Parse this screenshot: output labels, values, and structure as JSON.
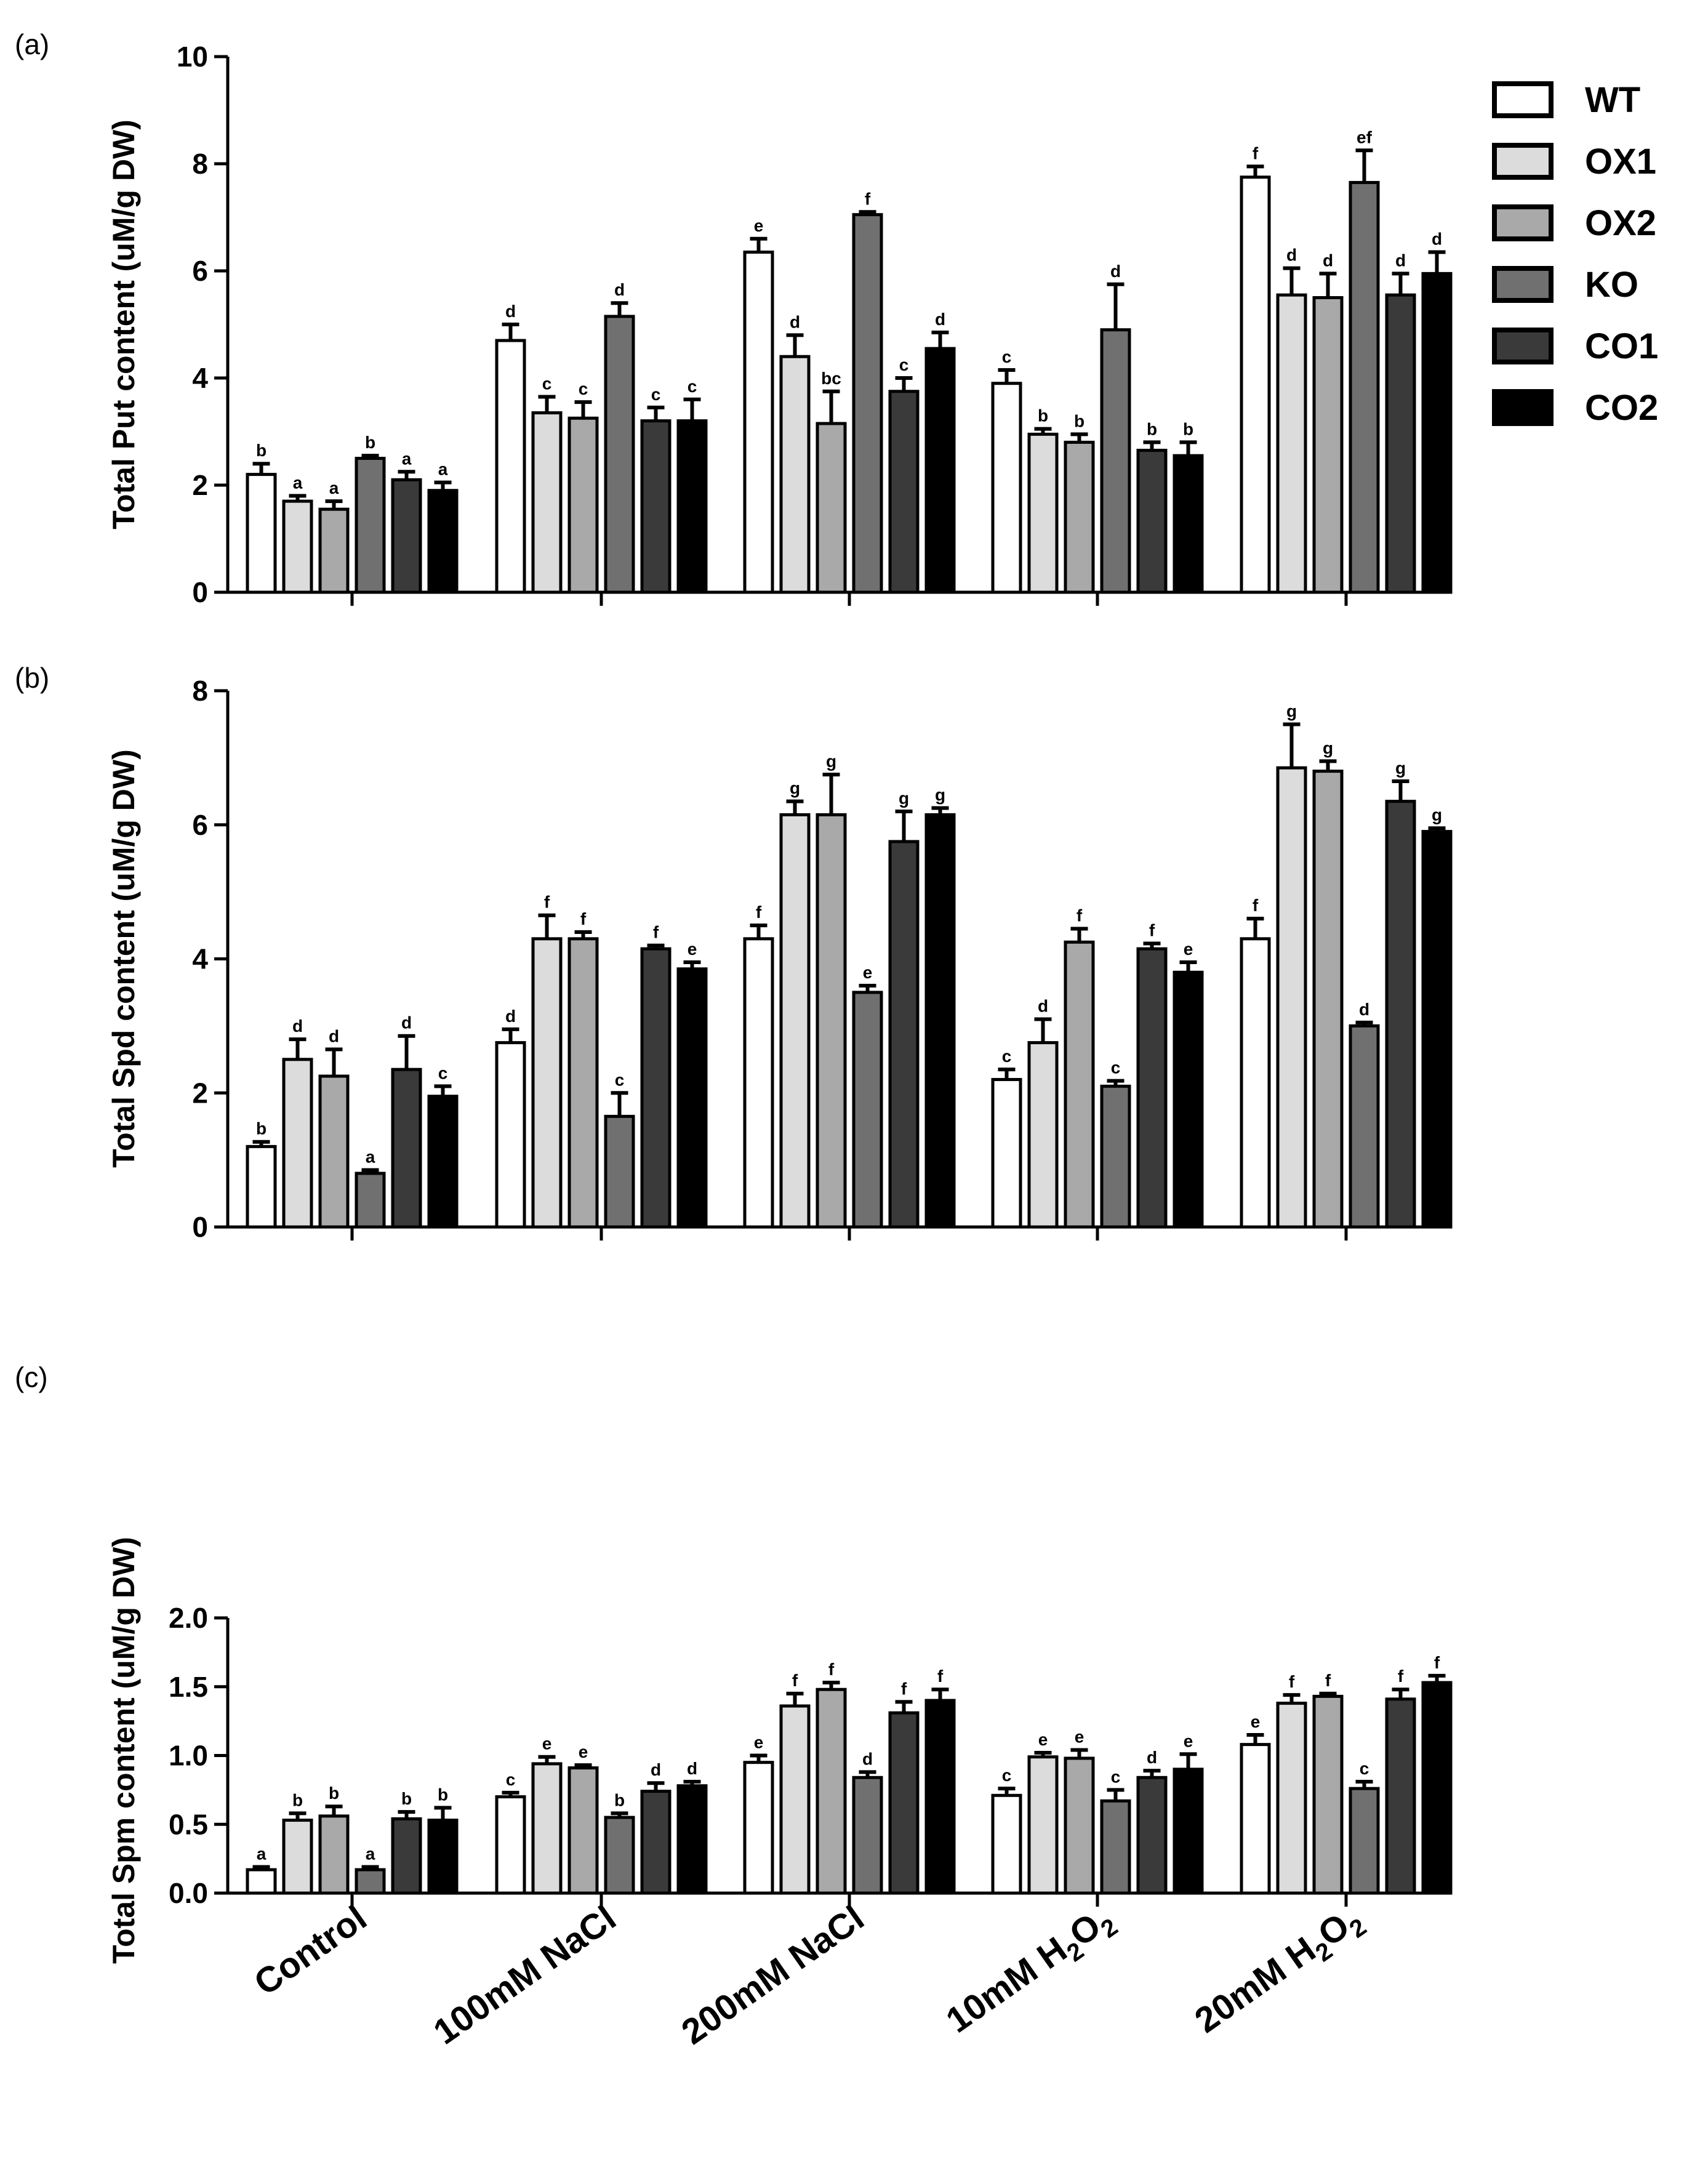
{
  "chart_data": [
    {
      "type": "bar",
      "panel": "(a)",
      "ylabel": "Total Put content (uM/g DW)",
      "ylim": [
        0,
        10
      ],
      "yticks": [
        "0",
        "2",
        "4",
        "6",
        "8",
        "10"
      ],
      "categories": [
        "Control",
        "100mM NaCl",
        "200mM NaCl",
        "10mM H2O2",
        "20mM H2O2"
      ],
      "series": [
        {
          "name": "WT",
          "values": [
            2.2,
            4.7,
            6.35,
            3.9,
            7.75
          ],
          "errors": [
            0.2,
            0.3,
            0.25,
            0.25,
            0.2
          ],
          "letters": [
            "b",
            "d",
            "e",
            "c",
            "f"
          ]
        },
        {
          "name": "OX1",
          "values": [
            1.7,
            3.35,
            4.4,
            2.95,
            5.55
          ],
          "errors": [
            0.1,
            0.3,
            0.4,
            0.1,
            0.5
          ],
          "letters": [
            "a",
            "c",
            "d",
            "b",
            "d"
          ]
        },
        {
          "name": "OX2",
          "values": [
            1.55,
            3.25,
            3.15,
            2.8,
            5.5
          ],
          "errors": [
            0.15,
            0.3,
            0.6,
            0.15,
            0.45
          ],
          "letters": [
            "a",
            "c",
            "bc",
            "b",
            "d"
          ]
        },
        {
          "name": "KO",
          "values": [
            2.5,
            5.15,
            7.05,
            4.9,
            7.65
          ],
          "errors": [
            0.05,
            0.25,
            0.05,
            0.85,
            0.6
          ],
          "letters": [
            "b",
            "d",
            "f",
            "d",
            "ef"
          ]
        },
        {
          "name": "CO1",
          "values": [
            2.1,
            3.2,
            3.75,
            2.65,
            5.55
          ],
          "errors": [
            0.15,
            0.25,
            0.25,
            0.15,
            0.4
          ],
          "letters": [
            "a",
            "c",
            "c",
            "b",
            "d"
          ]
        },
        {
          "name": "CO2",
          "values": [
            1.9,
            3.2,
            4.55,
            2.55,
            5.95
          ],
          "errors": [
            0.15,
            0.4,
            0.3,
            0.25,
            0.4
          ],
          "letters": [
            "a",
            "c",
            "d",
            "b",
            "d"
          ]
        }
      ]
    },
    {
      "type": "bar",
      "panel": "(b)",
      "ylabel": "Total Spd content (uM/g DW)",
      "ylim": [
        0,
        8
      ],
      "yticks": [
        "0",
        "2",
        "4",
        "6",
        "8"
      ],
      "categories": [
        "Control",
        "100mM NaCl",
        "200mM NaCl",
        "10mM H2O2",
        "20mM H2O2"
      ],
      "series": [
        {
          "name": "WT",
          "values": [
            1.2,
            2.75,
            4.3,
            2.2,
            4.3
          ],
          "errors": [
            0.07,
            0.2,
            0.2,
            0.15,
            0.3
          ],
          "letters": [
            "b",
            "d",
            "f",
            "c",
            "f"
          ]
        },
        {
          "name": "OX1",
          "values": [
            2.5,
            4.3,
            6.15,
            2.75,
            6.85
          ],
          "errors": [
            0.3,
            0.35,
            0.2,
            0.35,
            0.65
          ],
          "letters": [
            "d",
            "f",
            "g",
            "d",
            "g"
          ]
        },
        {
          "name": "OX2",
          "values": [
            2.25,
            4.3,
            6.15,
            4.25,
            6.8
          ],
          "errors": [
            0.4,
            0.1,
            0.6,
            0.2,
            0.15
          ],
          "letters": [
            "d",
            "f",
            "g",
            "f",
            "g"
          ]
        },
        {
          "name": "KO",
          "values": [
            0.8,
            1.65,
            3.5,
            2.1,
            3.0
          ],
          "errors": [
            0.05,
            0.35,
            0.1,
            0.08,
            0.05
          ],
          "letters": [
            "a",
            "c",
            "e",
            "c",
            "d"
          ]
        },
        {
          "name": "CO1",
          "values": [
            2.35,
            4.15,
            5.75,
            4.15,
            6.35
          ],
          "errors": [
            0.5,
            0.05,
            0.45,
            0.08,
            0.3
          ],
          "letters": [
            "d",
            "f",
            "g",
            "f",
            "g"
          ]
        },
        {
          "name": "CO2",
          "values": [
            1.95,
            3.85,
            6.15,
            3.8,
            5.9
          ],
          "errors": [
            0.15,
            0.1,
            0.1,
            0.15,
            0.05
          ],
          "letters": [
            "c",
            "e",
            "g",
            "e",
            "g"
          ]
        }
      ]
    },
    {
      "type": "bar",
      "panel": "(c)",
      "ylabel": "Total Spm content (uM/g DW)",
      "ylim": [
        0,
        2.0
      ],
      "yticks": [
        "0.0",
        "0.5",
        "1.0",
        "1.5",
        "2.0"
      ],
      "categories": [
        "Control",
        "100mM NaCl",
        "200mM NaCl",
        "10mM H2O2",
        "20mM H2O2"
      ],
      "series": [
        {
          "name": "WT",
          "values": [
            0.17,
            0.7,
            0.95,
            0.71,
            1.08
          ],
          "errors": [
            0.02,
            0.03,
            0.05,
            0.05,
            0.07
          ],
          "letters": [
            "a",
            "c",
            "e",
            "c",
            "e"
          ]
        },
        {
          "name": "OX1",
          "values": [
            0.53,
            0.94,
            1.36,
            0.99,
            1.38
          ],
          "errors": [
            0.05,
            0.05,
            0.09,
            0.03,
            0.06
          ],
          "letters": [
            "b",
            "e",
            "f",
            "e",
            "f"
          ]
        },
        {
          "name": "OX2",
          "values": [
            0.56,
            0.91,
            1.48,
            0.98,
            1.43
          ],
          "errors": [
            0.07,
            0.02,
            0.05,
            0.06,
            0.02
          ],
          "letters": [
            "b",
            "e",
            "f",
            "e",
            "f"
          ]
        },
        {
          "name": "KO",
          "values": [
            0.17,
            0.55,
            0.84,
            0.67,
            0.76
          ],
          "errors": [
            0.02,
            0.03,
            0.04,
            0.08,
            0.05
          ],
          "letters": [
            "a",
            "b",
            "d",
            "c",
            "c"
          ]
        },
        {
          "name": "CO1",
          "values": [
            0.54,
            0.74,
            1.31,
            0.84,
            1.41
          ],
          "errors": [
            0.05,
            0.06,
            0.08,
            0.05,
            0.07
          ],
          "letters": [
            "b",
            "d",
            "f",
            "d",
            "f"
          ]
        },
        {
          "name": "CO2",
          "values": [
            0.53,
            0.78,
            1.4,
            0.9,
            1.53
          ],
          "errors": [
            0.09,
            0.03,
            0.08,
            0.11,
            0.05
          ],
          "letters": [
            "b",
            "d",
            "f",
            "e",
            "f"
          ]
        }
      ]
    }
  ],
  "legend": {
    "position": "top-right",
    "items": [
      {
        "label": "WT",
        "color": "#ffffff"
      },
      {
        "label": "OX1",
        "color": "#dcdcdc"
      },
      {
        "label": "OX2",
        "color": "#a9a9a9"
      },
      {
        "label": "KO",
        "color": "#707070"
      },
      {
        "label": "CO1",
        "color": "#3a3a3a"
      },
      {
        "label": "CO2",
        "color": "#000000"
      }
    ]
  },
  "x_axis_labels": [
    {
      "main": "Control",
      "sub": ""
    },
    {
      "main": "100mM NaCl",
      "sub": ""
    },
    {
      "main": "200mM NaCl",
      "sub": ""
    },
    {
      "main": "10mM H",
      "sub": "2",
      "main2": "O",
      "sub2": "2"
    },
    {
      "main": "20mM H",
      "sub": "2",
      "main2": "O",
      "sub2": "2"
    }
  ]
}
